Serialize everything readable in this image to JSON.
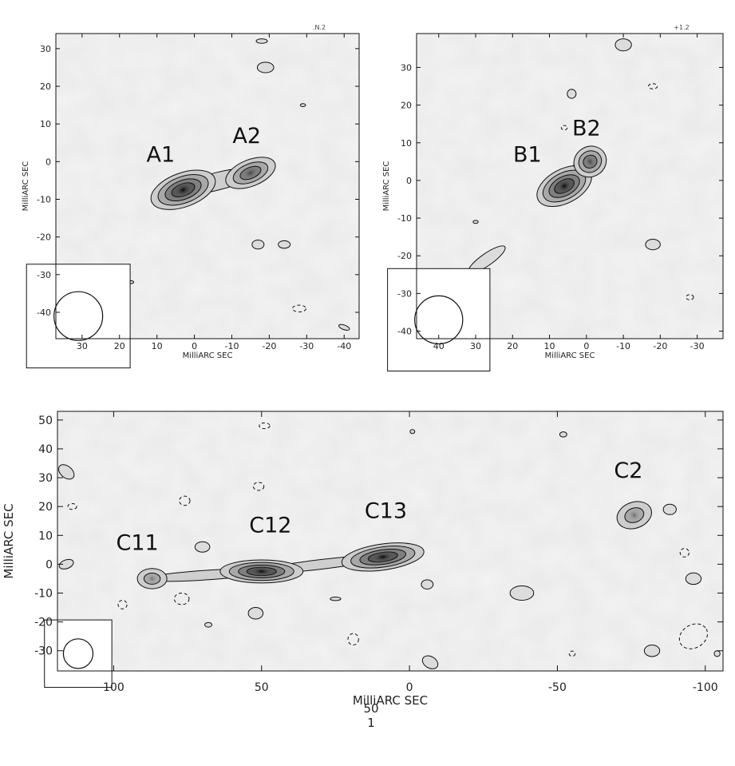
{
  "chart_data": [
    {
      "type": "contour",
      "panel": "A",
      "corner_label": ".N.2",
      "xlabel": "MilliARC SEC",
      "ylabel": "MilliARC SEC",
      "xlim": [
        37,
        -44
      ],
      "ylim": [
        -47,
        34
      ],
      "xticks": [
        30,
        20,
        10,
        0,
        -10,
        -20,
        -30,
        -40
      ],
      "yticks": [
        30,
        20,
        10,
        0,
        -10,
        -20,
        -30,
        -40
      ],
      "components": [
        {
          "name": "A1",
          "x": 3,
          "y": -7.5,
          "label_x": 9,
          "label_y": 0,
          "peak": 1.0
        },
        {
          "name": "A2",
          "x": -15,
          "y": -3,
          "label_x": -14,
          "label_y": 5,
          "peak": 0.5
        }
      ],
      "beam": {
        "x": 31,
        "y": -41,
        "major": 6.5,
        "minor": 6.5
      }
    },
    {
      "type": "contour",
      "panel": "B",
      "corner_label": "+1.2",
      "xlabel": "MilliARC SEC",
      "ylabel": "MilliARC SEC",
      "xlim": [
        46,
        -37
      ],
      "ylim": [
        -42,
        39
      ],
      "xticks": [
        40,
        30,
        20,
        10,
        0,
        -10,
        -20,
        -30
      ],
      "yticks": [
        30,
        20,
        10,
        0,
        -10,
        -20,
        -30,
        -40
      ],
      "components": [
        {
          "name": "B1",
          "x": 6,
          "y": -1.5,
          "label_x": 16,
          "label_y": 5,
          "peak": 1.0
        },
        {
          "name": "B2",
          "x": -1,
          "y": 5,
          "label_x": 0,
          "label_y": 12,
          "peak": 0.5
        }
      ],
      "beam": {
        "x": 40,
        "y": -37,
        "major": 6.5,
        "minor": 6.5
      }
    },
    {
      "type": "contour",
      "panel": "C",
      "corner_label": "",
      "xlabel": "MilliARC SEC",
      "ylabel": "MilliARC SEC",
      "xlim": [
        119,
        -106
      ],
      "ylim": [
        -37,
        53
      ],
      "xticks": [
        100,
        50,
        0,
        -50,
        -100
      ],
      "yticks": [
        50,
        40,
        30,
        20,
        10,
        0,
        -10,
        -20,
        -30
      ],
      "components": [
        {
          "name": "C11",
          "x": 87,
          "y": -5,
          "label_x": 92,
          "label_y": 5,
          "peak": 0.35
        },
        {
          "name": "C12",
          "x": 50,
          "y": -2.5,
          "label_x": 47,
          "label_y": 11,
          "peak": 1.0
        },
        {
          "name": "C13",
          "x": 9,
          "y": 2.5,
          "label_x": 8,
          "label_y": 16,
          "peak": 1.0
        },
        {
          "name": "C2",
          "x": -76,
          "y": 17,
          "label_x": -74,
          "label_y": 30,
          "peak": 0.4
        }
      ],
      "beam": {
        "x": 112,
        "y": -31,
        "major": 5,
        "minor": 5
      }
    }
  ],
  "footer_lines": [
    "50",
    "1"
  ]
}
